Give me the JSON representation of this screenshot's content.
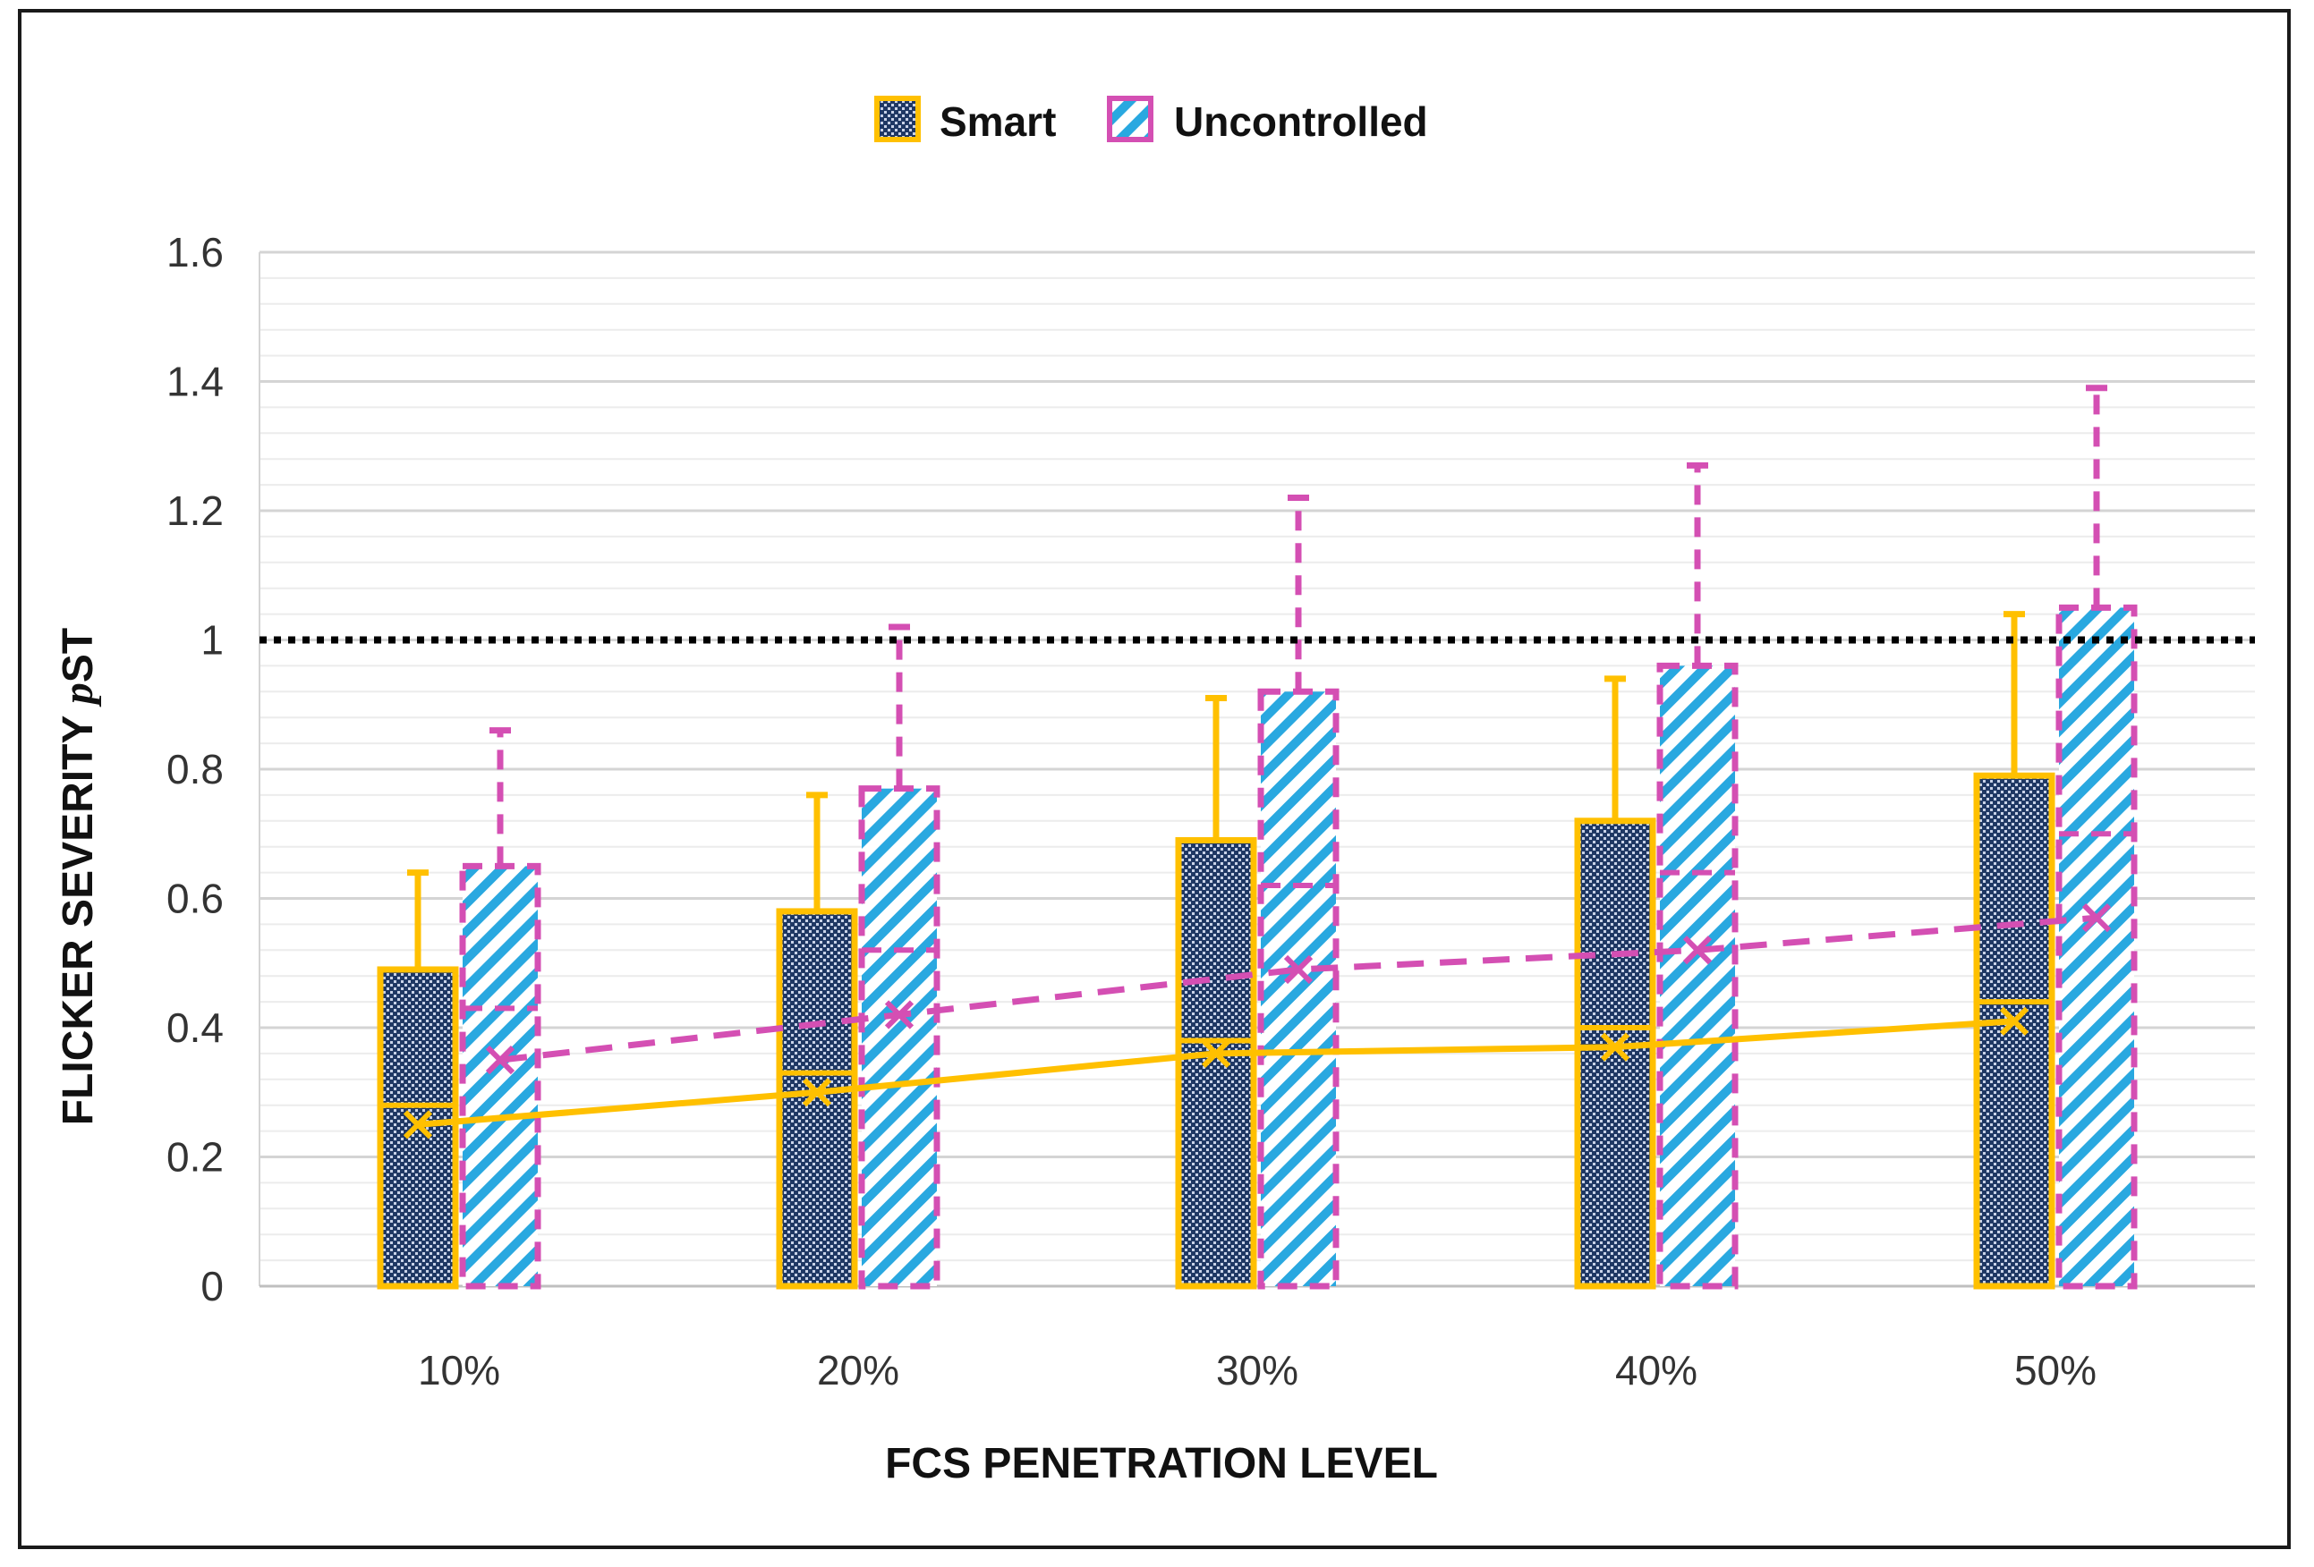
{
  "chart_data": {
    "type": "box",
    "title": "",
    "xlabel": "FCS PENETRATION LEVEL",
    "ylabel": {
      "prefix": "FLICKER SEVERITY ",
      "symbol": "p",
      "suffix": "ST"
    },
    "ylim": [
      0,
      1.6
    ],
    "yticks": [
      "0",
      "0.2",
      "0.4",
      "0.6",
      "0.8",
      "1",
      "1.2",
      "1.4",
      "1.6"
    ],
    "categories": [
      "10%",
      "20%",
      "30%",
      "40%",
      "50%"
    ],
    "grid": true,
    "legend_position": "top",
    "reference_line": {
      "y": 1.0,
      "style": "dotted",
      "color": "#000000"
    },
    "series": [
      {
        "name": "Smart",
        "color": "#FFC000",
        "fill": "#1F3864",
        "pattern": "dots",
        "line_style": "solid",
        "min": [
          0,
          0,
          0,
          0,
          0
        ],
        "q1": [
          0,
          0,
          0,
          0,
          0
        ],
        "median": [
          0.28,
          0.33,
          0.38,
          0.4,
          0.44
        ],
        "q3": [
          0.49,
          0.58,
          0.69,
          0.72,
          0.79
        ],
        "max": [
          0.64,
          0.76,
          0.91,
          0.94,
          1.04
        ],
        "mean": [
          0.25,
          0.3,
          0.36,
          0.37,
          0.41
        ]
      },
      {
        "name": "Uncontrolled",
        "color": "#D44FB3",
        "fill": "#29A8E0",
        "pattern": "stripes",
        "line_style": "dashed",
        "min": [
          0,
          0,
          0,
          0,
          0
        ],
        "q1": [
          0,
          0,
          0,
          0,
          0
        ],
        "median": [
          0.43,
          0.52,
          0.62,
          0.64,
          0.7
        ],
        "q3": [
          0.65,
          0.77,
          0.92,
          0.96,
          1.05
        ],
        "max": [
          0.86,
          1.02,
          1.22,
          1.27,
          1.39
        ],
        "mean": [
          0.35,
          0.42,
          0.49,
          0.52,
          0.57
        ]
      }
    ]
  }
}
